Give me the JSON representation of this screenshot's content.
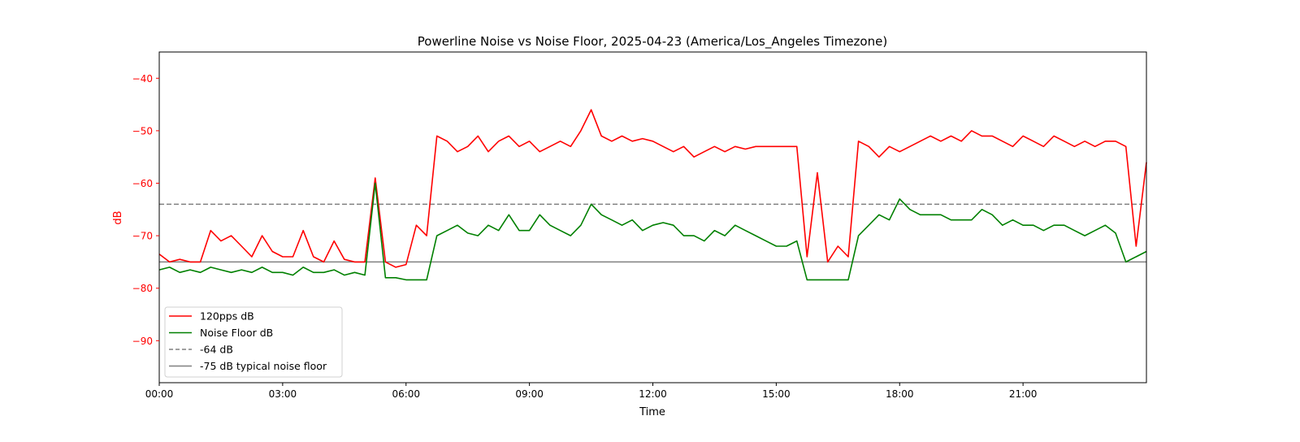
{
  "chart_data": {
    "type": "line",
    "title": "Powerline Noise vs Noise Floor, 2025-04-23 (America/Los_Angeles Timezone)",
    "xlabel": "Time",
    "ylabel": "dB",
    "xlim_hours": [
      0,
      24
    ],
    "ylim": [
      -98,
      -35
    ],
    "x_step_hours": 0.25,
    "x_ticks": [
      {
        "hour": 0,
        "label": "00:00"
      },
      {
        "hour": 3,
        "label": "03:00"
      },
      {
        "hour": 6,
        "label": "06:00"
      },
      {
        "hour": 9,
        "label": "09:00"
      },
      {
        "hour": 12,
        "label": "12:00"
      },
      {
        "hour": 15,
        "label": "15:00"
      },
      {
        "hour": 18,
        "label": "18:00"
      },
      {
        "hour": 21,
        "label": "21:00"
      }
    ],
    "y_ticks": [
      {
        "value": -40,
        "label": "−40"
      },
      {
        "value": -50,
        "label": "−50"
      },
      {
        "value": -60,
        "label": "−60"
      },
      {
        "value": -70,
        "label": "−70"
      },
      {
        "value": -80,
        "label": "−80"
      },
      {
        "value": -90,
        "label": "−90"
      }
    ],
    "grid": false,
    "legend_position": "lower-left",
    "series": [
      {
        "name": "120pps dB",
        "color": "#ff0000",
        "style": "solid",
        "values": [
          -73.5,
          -75,
          -74.5,
          -75,
          -75,
          -69,
          -71,
          -70,
          -72,
          -74,
          -70,
          -73,
          -74,
          -74,
          -69,
          -74,
          -75,
          -71,
          -74.5,
          -75,
          -75,
          -59,
          -75,
          -76,
          -75.5,
          -68,
          -70,
          -51,
          -52,
          -54,
          -53,
          -51,
          -54,
          -52,
          -51,
          -53,
          -52,
          -54,
          -53,
          -52,
          -53,
          -50,
          -46,
          -51,
          -52,
          -51,
          -52,
          -51.5,
          -52,
          -53,
          -54,
          -53,
          -55,
          -54,
          -53,
          -54,
          -53,
          -53.5,
          -53,
          -53,
          -53,
          -53,
          -53,
          -74,
          -58,
          -75,
          -72,
          -74,
          -52,
          -53,
          -55,
          -53,
          -54,
          -53,
          -52,
          -51,
          -52,
          -51,
          -52,
          -50,
          -51,
          -51,
          -52,
          -53,
          -51,
          -52,
          -53,
          -51,
          -52,
          -53,
          -52,
          -53,
          -52,
          -52,
          -53,
          -72,
          -56
        ]
      },
      {
        "name": "Noise Floor dB",
        "color": "#008000",
        "style": "solid",
        "values": [
          -76.5,
          -76,
          -77,
          -76.5,
          -77,
          -76,
          -76.5,
          -77,
          -76.5,
          -77,
          -76,
          -77,
          -77,
          -77.5,
          -76,
          -77,
          -77,
          -76.5,
          -77.5,
          -77,
          -77.5,
          -60,
          -78,
          -78,
          -78.4,
          -78.4,
          -78.4,
          -70,
          -69,
          -68,
          -69.5,
          -70,
          -68,
          -69,
          -66,
          -69,
          -69,
          -66,
          -68,
          -69,
          -70,
          -68,
          -64,
          -66,
          -67,
          -68,
          -67,
          -69,
          -68,
          -67.5,
          -68,
          -70,
          -70,
          -71,
          -69,
          -70,
          -68,
          -69,
          -70,
          -71,
          -72,
          -72,
          -71,
          -78.4,
          -78.4,
          -78.4,
          -78.4,
          -78.4,
          -70,
          -68,
          -66,
          -67,
          -63,
          -65,
          -66,
          -66,
          -66,
          -67,
          -67,
          -67,
          -65,
          -66,
          -68,
          -67,
          -68,
          -68,
          -69,
          -68,
          -68,
          -69,
          -70,
          -69,
          -68,
          -69.5,
          -75,
          -74,
          -73
        ]
      }
    ],
    "reference_lines": [
      {
        "name": "-64 dB",
        "value": -64,
        "color": "#808080",
        "style": "dashed"
      },
      {
        "name": "-75 dB typical noise floor",
        "value": -75,
        "color": "#808080",
        "style": "solid"
      }
    ]
  }
}
